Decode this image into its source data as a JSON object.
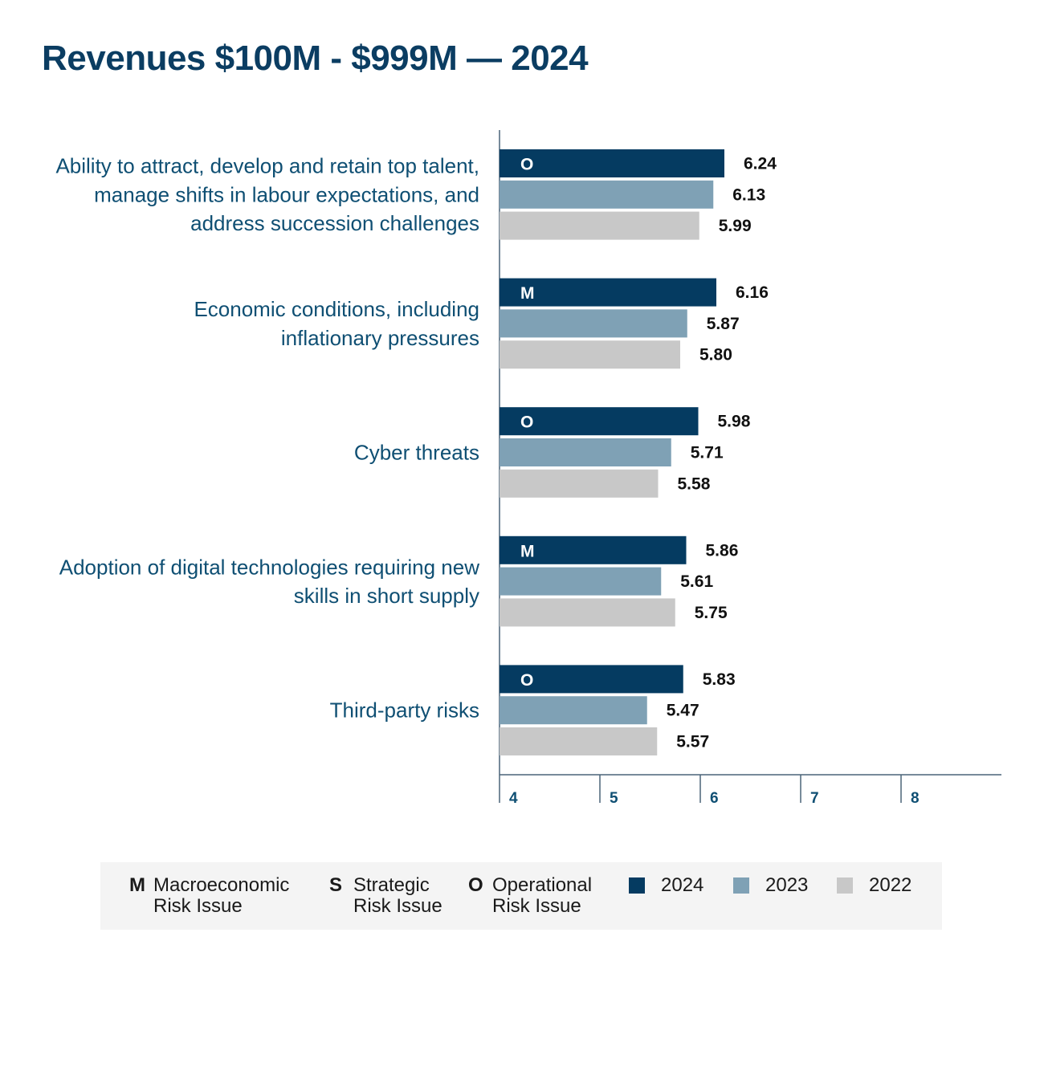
{
  "title": "Revenues $100M - $999M — 2024",
  "colors": {
    "2024": "#053b61",
    "2023": "#7fa1b5",
    "2022": "#c8c8c8",
    "axis": "#4a6478",
    "tick_text": "#0f4f73"
  },
  "chart_data": {
    "type": "bar",
    "orientation": "horizontal",
    "title": "Revenues $100M - $999M — 2024",
    "categories": [
      [
        "Ability to attract, develop and retain top talent,",
        "manage shifts in labour expectations, and",
        "address succession challenges"
      ],
      [
        "Economic conditions, including",
        "inflationary pressures"
      ],
      [
        "Cyber threats"
      ],
      [
        "Adoption of digital technologies requiring new",
        "skills in short supply"
      ],
      [
        "Third-party risks"
      ]
    ],
    "risk_type": [
      "O",
      "M",
      "O",
      "M",
      "O"
    ],
    "series": [
      {
        "name": "2024",
        "values": [
          6.24,
          6.16,
          5.98,
          5.86,
          5.83
        ],
        "labels": [
          "6.24",
          "6.16",
          "5.98",
          "5.86",
          "5.83"
        ]
      },
      {
        "name": "2023",
        "values": [
          6.13,
          5.87,
          5.71,
          5.61,
          5.47
        ],
        "labels": [
          "6.13",
          "5.87",
          "5.71",
          "5.61",
          "5.47"
        ]
      },
      {
        "name": "2022",
        "values": [
          5.99,
          5.8,
          5.58,
          5.75,
          5.57
        ],
        "labels": [
          "5.99",
          "5.80",
          "5.58",
          "5.75",
          "5.57"
        ]
      }
    ],
    "x_ticks": [
      4,
      5,
      6,
      7,
      8
    ],
    "xlim": [
      4,
      9
    ],
    "grid": false
  },
  "legend": {
    "risk_types": [
      {
        "code": "M",
        "line1": "Macroeconomic",
        "line2": "Risk Issue"
      },
      {
        "code": "S",
        "line1": "Strategic",
        "line2": "Risk Issue"
      },
      {
        "code": "O",
        "line1": "Operational",
        "line2": "Risk Issue"
      }
    ],
    "years": [
      "2024",
      "2023",
      "2022"
    ]
  }
}
